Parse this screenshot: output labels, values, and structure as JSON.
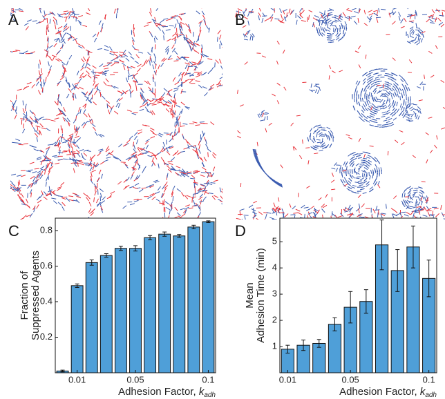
{
  "panels": [
    {
      "panel": "A"
    },
    {
      "panel": "B"
    }
  ],
  "chart_data": [
    {
      "type": "bar",
      "panel": "C",
      "y_label": [
        "Fraction of",
        "Suppressed Agents"
      ],
      "x_label": "Adhesion Factor, ",
      "x_label_var": "k",
      "x_label_sub": "adh",
      "categories": [
        null,
        "0.01",
        null,
        null,
        null,
        "0.05",
        null,
        null,
        null,
        null,
        "0.1"
      ],
      "series": [
        {
          "color": "#4f9fd8",
          "values": [
            0.01,
            0.49,
            0.62,
            0.66,
            0.7,
            0.7,
            0.76,
            0.78,
            0.77,
            0.82,
            0.85
          ],
          "errors": [
            0.005,
            0.01,
            0.015,
            0.01,
            0.012,
            0.015,
            0.012,
            0.012,
            0.008,
            0.01,
            0.005
          ]
        }
      ],
      "ylim": [
        0,
        0.87
      ],
      "yticks": [
        0.2,
        0.4,
        0.6,
        0.8
      ]
    },
    {
      "type": "bar",
      "panel": "D",
      "y_label": [
        "Mean",
        "Adhesion Time (min)"
      ],
      "x_label": "Adhesion Factor, ",
      "x_label_var": "k",
      "x_label_sub": "adh",
      "categories": [
        "0.01",
        null,
        null,
        null,
        "0.05",
        null,
        null,
        null,
        null,
        "0.1"
      ],
      "series": [
        {
          "color": "#4f9fd8",
          "values": [
            0.9,
            1.05,
            1.12,
            1.85,
            2.5,
            2.72,
            4.88,
            3.9,
            4.8,
            3.6
          ],
          "errors": [
            0.15,
            0.2,
            0.15,
            0.25,
            0.6,
            0.45,
            0.95,
            0.8,
            0.8,
            0.7
          ]
        }
      ],
      "ylim": [
        0,
        5.9
      ],
      "yticks": [
        1,
        2,
        3,
        4,
        5
      ]
    }
  ]
}
